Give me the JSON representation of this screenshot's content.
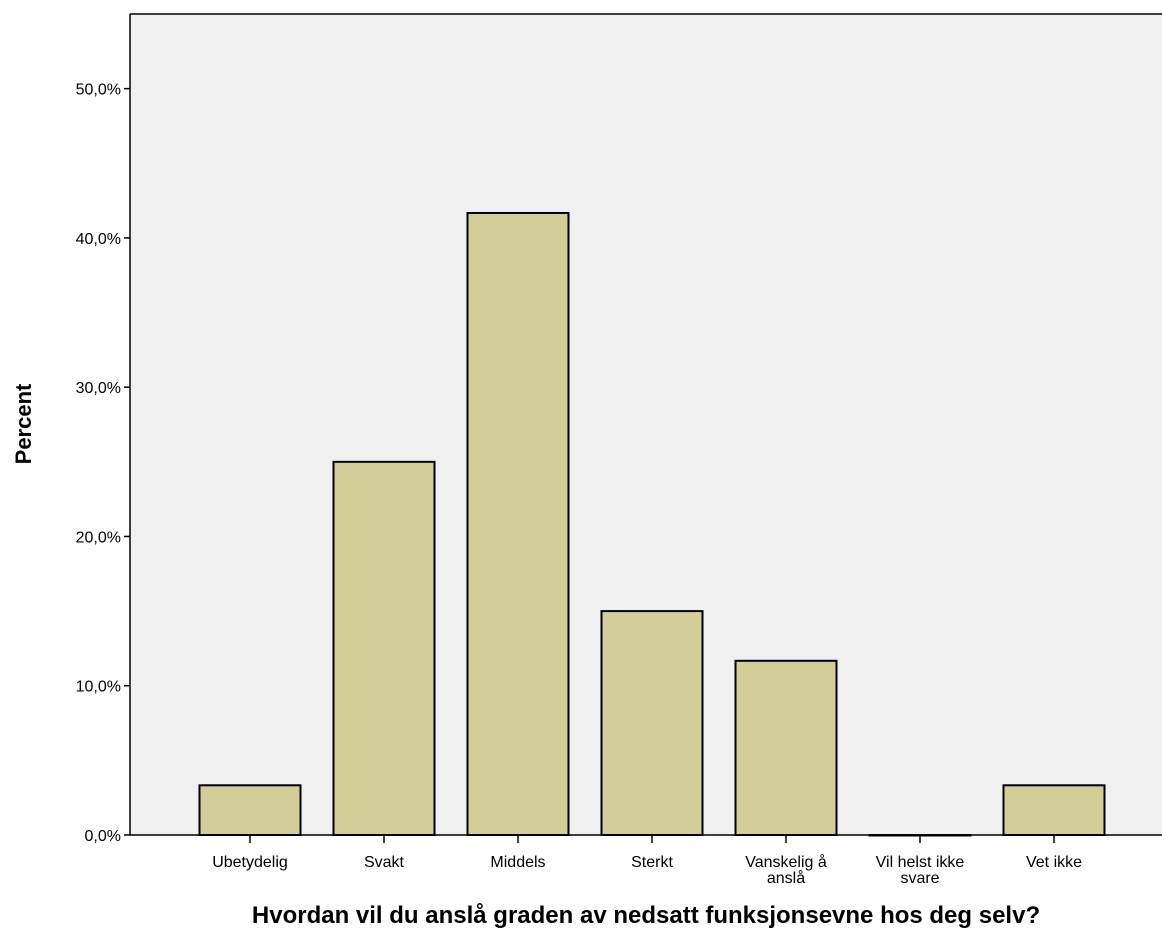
{
  "chart_data": {
    "type": "bar",
    "categories": [
      [
        "Ubetydelig"
      ],
      [
        "Svakt"
      ],
      [
        "Middels"
      ],
      [
        "Sterkt"
      ],
      [
        "Vanskelig å",
        "anslå"
      ],
      [
        "Vil helst ikke",
        "svare"
      ],
      [
        "Vet ikke"
      ]
    ],
    "values": [
      3.33,
      25.0,
      41.67,
      15.0,
      11.67,
      0.0,
      3.33
    ],
    "xlabel": "Hvordan vil du anslå graden av nedsatt funksjonsevne hos deg selv?",
    "ylabel": "Percent",
    "ylim": [
      0,
      55
    ],
    "yticks": [
      {
        "value": 0,
        "label": "0,0%"
      },
      {
        "value": 10,
        "label": "10,0%"
      },
      {
        "value": 20,
        "label": "20,0%"
      },
      {
        "value": 30,
        "label": "30,0%"
      },
      {
        "value": 40,
        "label": "40,0%"
      },
      {
        "value": 50,
        "label": "50,0%"
      }
    ],
    "grid": false,
    "colors": {
      "bar_fill": "#d3ce98",
      "bar_stroke": "#000000",
      "plot_background": "#f0f0f0",
      "axis": "#000000"
    }
  }
}
